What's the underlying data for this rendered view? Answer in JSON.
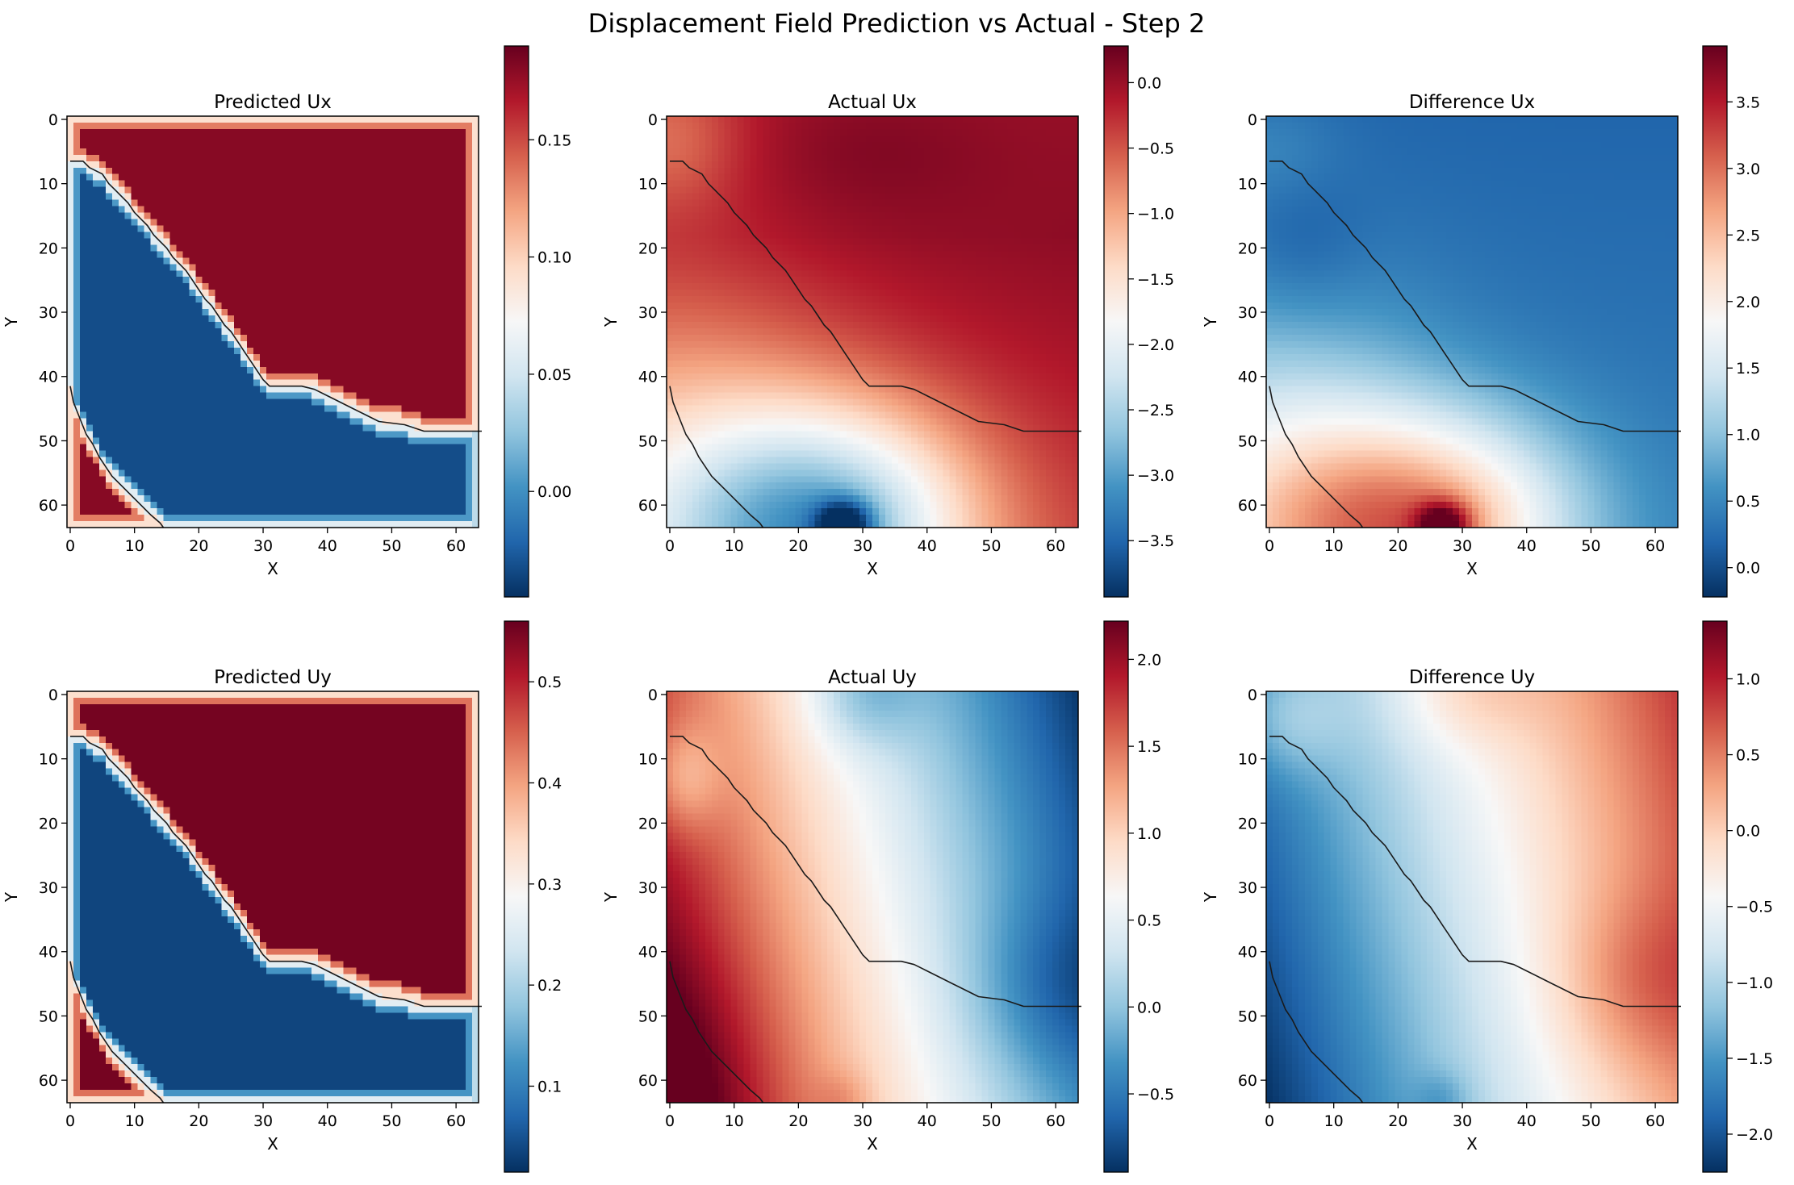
{
  "figure": {
    "suptitle": "Displacement Field Prediction vs Actual - Step 2"
  },
  "chart_data": [
    {
      "type": "heatmap",
      "title": "Predicted Ux",
      "xlabel": "X",
      "ylabel": "Y",
      "xticks": [
        0,
        10,
        20,
        30,
        40,
        50,
        60
      ],
      "yticks": [
        0,
        10,
        20,
        30,
        40,
        50,
        60
      ],
      "grid_size": 64,
      "colormap": "RdBu_r",
      "field": "pred",
      "vmin": -0.045,
      "vmax": 0.19,
      "colorbar_ticks": [
        0.0,
        0.05,
        0.1,
        0.15
      ],
      "colorbar_labels": [
        "0.00",
        "0.05",
        "0.10",
        "0.15"
      ],
      "level_low": -0.035,
      "level_high": 0.18
    },
    {
      "type": "heatmap",
      "title": "Actual Ux",
      "xlabel": "X",
      "ylabel": "Y",
      "xticks": [
        0,
        10,
        20,
        30,
        40,
        50,
        60
      ],
      "yticks": [
        0,
        10,
        20,
        30,
        40,
        50,
        60
      ],
      "grid_size": 64,
      "colormap": "RdBu_r",
      "field": "actual_ux",
      "vmin": -3.93,
      "vmax": 0.28,
      "colorbar_ticks": [
        -3.5,
        -3.0,
        -2.5,
        -2.0,
        -1.5,
        -1.0,
        -0.5,
        0.0
      ],
      "colorbar_labels": [
        "−3.5",
        "−3.0",
        "−2.5",
        "−2.0",
        "−1.5",
        "−1.0",
        "−0.5",
        "0.0"
      ]
    },
    {
      "type": "heatmap",
      "title": "Difference Ux",
      "xlabel": "X",
      "ylabel": "Y",
      "xticks": [
        0,
        10,
        20,
        30,
        40,
        50,
        60
      ],
      "yticks": [
        0,
        10,
        20,
        30,
        40,
        50,
        60
      ],
      "grid_size": 64,
      "colormap": "RdBu_r",
      "field": "diff_ux",
      "vmin": -0.22,
      "vmax": 3.92,
      "colorbar_ticks": [
        0.0,
        0.5,
        1.0,
        1.5,
        2.0,
        2.5,
        3.0,
        3.5
      ],
      "colorbar_labels": [
        "0.0",
        "0.5",
        "1.0",
        "1.5",
        "2.0",
        "2.5",
        "3.0",
        "3.5"
      ]
    },
    {
      "type": "heatmap",
      "title": "Predicted Uy",
      "xlabel": "X",
      "ylabel": "Y",
      "xticks": [
        0,
        10,
        20,
        30,
        40,
        50,
        60
      ],
      "yticks": [
        0,
        10,
        20,
        30,
        40,
        50,
        60
      ],
      "grid_size": 64,
      "colormap": "RdBu_r",
      "field": "pred",
      "vmin": 0.015,
      "vmax": 0.56,
      "colorbar_ticks": [
        0.1,
        0.2,
        0.3,
        0.4,
        0.5
      ],
      "colorbar_labels": [
        "0.1",
        "0.2",
        "0.3",
        "0.4",
        "0.5"
      ],
      "level_low": 0.03,
      "level_high": 0.55
    },
    {
      "type": "heatmap",
      "title": "Actual Uy",
      "xlabel": "X",
      "ylabel": "Y",
      "xticks": [
        0,
        10,
        20,
        30,
        40,
        50,
        60
      ],
      "yticks": [
        0,
        10,
        20,
        30,
        40,
        50,
        60
      ],
      "grid_size": 64,
      "colormap": "RdBu_r",
      "field": "actual_uy",
      "vmin": -0.95,
      "vmax": 2.22,
      "colorbar_ticks": [
        -0.5,
        0.0,
        0.5,
        1.0,
        1.5,
        2.0
      ],
      "colorbar_labels": [
        "−0.5",
        "0.0",
        "0.5",
        "1.0",
        "1.5",
        "2.0"
      ]
    },
    {
      "type": "heatmap",
      "title": "Difference Uy",
      "xlabel": "X",
      "ylabel": "Y",
      "xticks": [
        0,
        10,
        20,
        30,
        40,
        50,
        60
      ],
      "yticks": [
        0,
        10,
        20,
        30,
        40,
        50,
        60
      ],
      "grid_size": 64,
      "colormap": "RdBu_r",
      "field": "diff_uy",
      "vmin": -2.25,
      "vmax": 1.38,
      "colorbar_ticks": [
        -2.0,
        -1.5,
        -1.0,
        -0.5,
        0.0,
        0.5,
        1.0
      ],
      "colorbar_labels": [
        "−2.0",
        "−1.5",
        "−1.0",
        "−0.5",
        "0.0",
        "0.5",
        "1.0"
      ]
    }
  ],
  "boundary_contours": [
    [
      [
        0,
        6.5
      ],
      [
        2,
        6.5
      ],
      [
        3,
        7.5
      ],
      [
        5,
        8.5
      ],
      [
        6,
        10
      ],
      [
        7,
        11
      ],
      [
        8,
        12
      ],
      [
        9,
        13
      ],
      [
        10,
        14.5
      ],
      [
        11,
        15.5
      ],
      [
        12,
        16.5
      ],
      [
        13,
        18
      ],
      [
        14,
        19
      ],
      [
        15,
        20
      ],
      [
        16,
        21.5
      ],
      [
        17,
        22.5
      ],
      [
        18,
        23.5
      ],
      [
        19,
        25
      ],
      [
        20,
        26.5
      ],
      [
        21,
        28
      ],
      [
        22,
        29
      ],
      [
        23,
        30.5
      ],
      [
        24,
        32
      ],
      [
        25,
        33
      ],
      [
        26,
        34.5
      ],
      [
        27,
        36
      ],
      [
        28,
        37.5
      ],
      [
        29,
        39
      ],
      [
        30,
        40.5
      ],
      [
        31,
        41.5
      ],
      [
        36,
        41.5
      ],
      [
        38,
        42
      ],
      [
        40,
        43
      ],
      [
        42,
        44
      ],
      [
        44,
        45
      ],
      [
        46,
        46
      ],
      [
        48,
        47
      ],
      [
        52,
        47.5
      ],
      [
        55,
        48.5
      ],
      [
        64,
        48.5
      ]
    ],
    [
      [
        0,
        41.5
      ],
      [
        0.5,
        44
      ],
      [
        1.5,
        46.5
      ],
      [
        2.5,
        49
      ],
      [
        3.5,
        50.5
      ],
      [
        4.5,
        52.5
      ],
      [
        5.5,
        54
      ],
      [
        6.5,
        55.5
      ],
      [
        8,
        57
      ],
      [
        9.5,
        58.5
      ],
      [
        11,
        60
      ],
      [
        12.5,
        61.5
      ],
      [
        14,
        62.8
      ],
      [
        14.5,
        63.5
      ]
    ]
  ]
}
